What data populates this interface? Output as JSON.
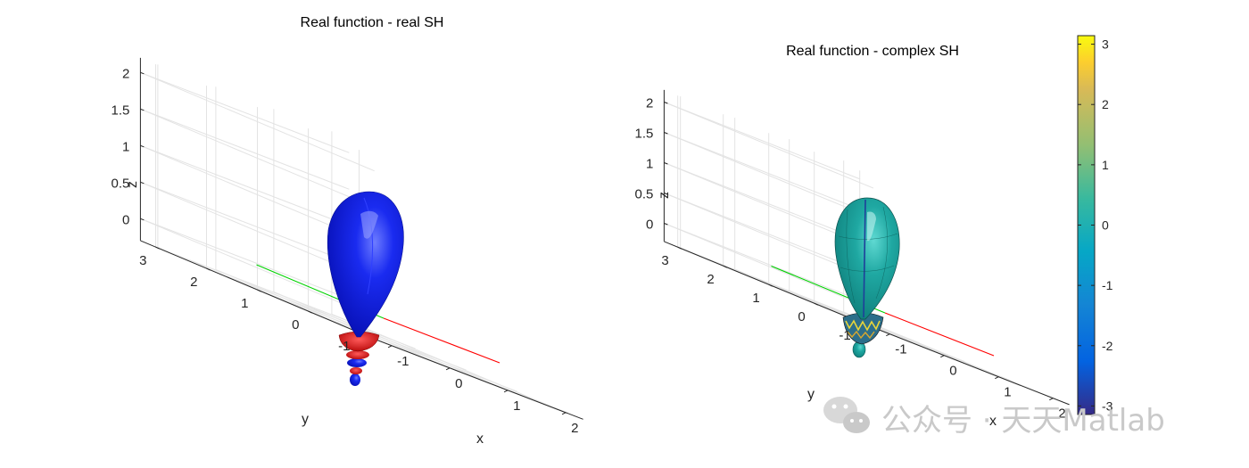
{
  "chart_data": [
    {
      "type": "surface3d",
      "title": "Real function - real SH",
      "xlabel": "x",
      "ylabel": "y",
      "zlabel": "z",
      "xlim": [
        -1.3,
        2.3
      ],
      "ylim": [
        -1.3,
        3.3
      ],
      "zlim": [
        -0.3,
        2.2
      ],
      "x_ticks": [
        "-1",
        "0",
        "1",
        "2"
      ],
      "y_ticks": [
        "-1",
        "0",
        "1",
        "2",
        "3"
      ],
      "z_ticks": [
        "0",
        "0.5",
        "1",
        "1.5",
        "2"
      ],
      "surface_colors": {
        "positive": "#0a19d8",
        "negative": "#d80f0f"
      },
      "reference_lines": [
        {
          "axis": "x",
          "from": [
            0,
            0,
            0
          ],
          "to": [
            2,
            0,
            0
          ],
          "color": "#ff0000"
        },
        {
          "axis": "y",
          "from": [
            0,
            0,
            0
          ],
          "to": [
            0,
            2.5,
            0
          ],
          "color": "#00d200"
        }
      ],
      "grid": true
    },
    {
      "type": "surface3d",
      "title": "Real function - complex SH",
      "xlabel": "x",
      "ylabel": "y",
      "zlabel": "z",
      "xlim": [
        -1.3,
        2.3
      ],
      "ylim": [
        -1.3,
        3.3
      ],
      "zlim": [
        -0.3,
        2.2
      ],
      "x_ticks": [
        "-1",
        "0",
        "1",
        "2"
      ],
      "y_ticks": [
        "-1",
        "0",
        "1",
        "2",
        "3"
      ],
      "z_ticks": [
        "0",
        "0.5",
        "1",
        "1.5",
        "2"
      ],
      "surface_colors": {
        "phase": "#19a3a0"
      },
      "colorbar": {
        "min": -3.1416,
        "max": 3.1416,
        "ticks": [
          "-3",
          "-2",
          "-1",
          "0",
          "1",
          "2",
          "3"
        ],
        "colormap": "parula"
      },
      "reference_lines": [
        {
          "axis": "x",
          "from": [
            0,
            0,
            0
          ],
          "to": [
            2,
            0,
            0
          ],
          "color": "#ff0000"
        },
        {
          "axis": "y",
          "from": [
            0,
            0,
            0
          ],
          "to": [
            0,
            2.5,
            0
          ],
          "color": "#00d200"
        }
      ],
      "grid": true
    }
  ],
  "watermark": "公众号 · 天天Matlab"
}
